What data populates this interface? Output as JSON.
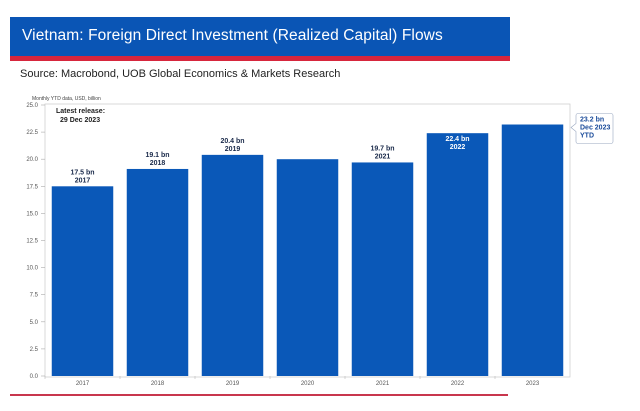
{
  "header": {
    "title": "Vietnam: Foreign Direct Investment (Realized Capital) Flows",
    "source": "Source: Macrobond, UOB Global Economics & Markets Research"
  },
  "colors": {
    "banner": "#0a55b5",
    "accent_red": "#d7263d",
    "bar": "#0a58b8"
  },
  "chart_data": {
    "type": "bar",
    "title": "Vietnam: Foreign Direct Investment (Realized Capital) Flows",
    "unit_note": "Monthly YTD data, USD, billion",
    "annotation_release": [
      "Latest release:",
      "29 Dec 2023"
    ],
    "categories": [
      "2017",
      "2018",
      "2019",
      "2020",
      "2021",
      "2022",
      "2023"
    ],
    "values": [
      17.5,
      19.1,
      20.4,
      20.0,
      19.7,
      22.4,
      23.2
    ],
    "bar_labels": [
      [
        "17.5 bn",
        "2017"
      ],
      [
        "19.1 bn",
        "2018"
      ],
      [
        "20.4 bn",
        "2019"
      ],
      null,
      [
        "19.7 bn",
        "2021"
      ],
      [
        "22.4 bn",
        "2022"
      ],
      null
    ],
    "callout": [
      "23.2 bn",
      "Dec 2023",
      "YTD"
    ],
    "yticks": [
      "0.0",
      "2.5",
      "5.0",
      "7.5",
      "10.0",
      "12.5",
      "15.0",
      "17.5",
      "20.0",
      "22.5",
      "25.0"
    ],
    "ylim": [
      0,
      25
    ],
    "xlabel": "",
    "ylabel": "",
    "grid": false,
    "legend": "none"
  }
}
